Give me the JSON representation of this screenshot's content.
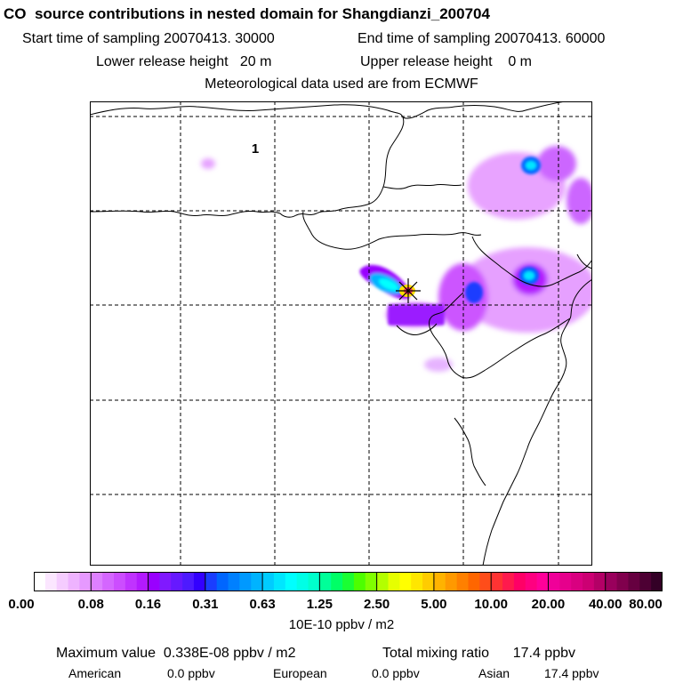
{
  "header": {
    "title": "CO  source contributions in nested domain for Shangdianzi_200704",
    "start_sampling": "Start time of sampling 20070413. 30000",
    "end_sampling": "End time of sampling 20070413. 60000",
    "lower_release": "Lower release height   20 m",
    "upper_release": "Upper release height    0 m",
    "meteo": "Meteorological data used are from ECMWF"
  },
  "map": {
    "marker_label": "1",
    "station_marker": "asterisk-star"
  },
  "colorbar": {
    "ticks": [
      "0.00",
      "0.08",
      "0.16",
      "0.31",
      "0.63",
      "1.25",
      "2.50",
      "5.00",
      "10.00",
      "20.00",
      "40.00",
      "80.00"
    ],
    "colors": [
      "#ffffff",
      "#fbe6ff",
      "#f5ccff",
      "#eeb3ff",
      "#e699ff",
      "#dd80ff",
      "#d466ff",
      "#cc4dff",
      "#c033ff",
      "#b31aff",
      "#9900ff",
      "#8019ff",
      "#6619ff",
      "#4d1aff",
      "#3300ff",
      "#1a3dff",
      "#0066ff",
      "#0080ff",
      "#0099ff",
      "#00b3ff",
      "#00ccff",
      "#00e6ff",
      "#00ffff",
      "#00ffe6",
      "#00ffcc",
      "#00ff99",
      "#00ff66",
      "#1aff33",
      "#4dff00",
      "#80ff00",
      "#b3ff00",
      "#e6ff00",
      "#ffff00",
      "#ffe600",
      "#ffcc00",
      "#ffb300",
      "#ff9900",
      "#ff8000",
      "#ff6600",
      "#ff4d1a",
      "#ff3333",
      "#ff1a4d",
      "#ff0066",
      "#ff0080",
      "#ff0099",
      "#f00099",
      "#e6008c",
      "#d90080",
      "#cc0073",
      "#b30066",
      "#99005c",
      "#80004d",
      "#660040",
      "#4d0033",
      "#330026"
    ],
    "unit": "10E-10 ppbv / m2"
  },
  "summary": {
    "max_value": "Maximum value  0.338E-08 ppbv / m2",
    "total_mixing": "Total mixing ratio      17.4 ppbv",
    "american_label": "American",
    "american_value": "0.0 ppbv",
    "european_label": "European",
    "european_value": "0.0 ppbv",
    "asian_label": "Asian",
    "asian_value": "17.4 ppbv"
  }
}
